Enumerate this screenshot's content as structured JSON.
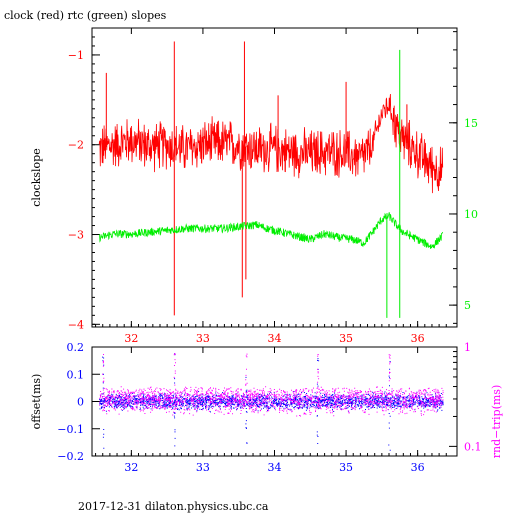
{
  "title": "clock (red) rtc (green) slopes",
  "footer": "2017-12-31 dilaton.physics.ubc.ca",
  "colors": {
    "axis": "#000000",
    "clock": "#ff0000",
    "rtc": "#00ee00",
    "offset": "#0000ff",
    "rndtrip": "#ff00ff"
  },
  "chart_data": [
    {
      "type": "line",
      "ylabel": "clockslope",
      "y2label": "",
      "xlim": [
        31.45,
        36.55
      ],
      "ylim": [
        -4.03,
        -0.7
      ],
      "y2lim": [
        3.8,
        20.2
      ],
      "xticks": [
        32,
        33,
        34,
        35,
        36
      ],
      "xtick_labels": [
        "32",
        "33",
        "34",
        "35",
        "36"
      ],
      "yticks": [
        -1,
        -2,
        -3,
        -4
      ],
      "ytick_labels": [
        "−1",
        "−2",
        "−3",
        "−4"
      ],
      "y2ticks": [
        5,
        10,
        15
      ],
      "y2tick_labels": [
        "5",
        "10",
        "15"
      ],
      "series": [
        {
          "name": "clock",
          "axis": "left",
          "x": [
            31.55,
            31.75,
            32.0,
            32.25,
            32.5,
            32.75,
            33.0,
            33.25,
            33.5,
            33.75,
            34.0,
            34.25,
            34.5,
            34.75,
            35.0,
            35.2,
            35.35,
            35.5,
            35.6,
            35.75,
            36.0,
            36.2,
            36.35
          ],
          "values": [
            -2.05,
            -2.0,
            -1.95,
            -2.02,
            -2.0,
            -2.05,
            -2.0,
            -1.98,
            -2.0,
            -2.05,
            -2.05,
            -2.08,
            -2.1,
            -2.08,
            -2.1,
            -2.15,
            -2.05,
            -1.65,
            -1.55,
            -1.9,
            -2.1,
            -2.25,
            -2.3
          ],
          "spikes": [
            {
              "x": 32.6,
              "value": -3.9
            },
            {
              "x": 32.6,
              "value": -0.85
            },
            {
              "x": 33.55,
              "value": -3.7
            },
            {
              "x": 33.58,
              "value": -0.85
            },
            {
              "x": 33.6,
              "value": -3.5
            },
            {
              "x": 31.65,
              "value": -1.2
            },
            {
              "x": 34.05,
              "value": -1.45
            },
            {
              "x": 35.0,
              "value": -1.3
            },
            {
              "x": 35.85,
              "value": -1.55
            }
          ]
        },
        {
          "name": "rtc",
          "axis": "right",
          "x": [
            31.55,
            31.75,
            32.0,
            32.25,
            32.5,
            32.75,
            33.0,
            33.25,
            33.5,
            33.75,
            33.9,
            34.1,
            34.3,
            34.5,
            34.7,
            34.9,
            35.1,
            35.25,
            35.35,
            35.5,
            35.6,
            35.7,
            35.8,
            36.0,
            36.2,
            36.35
          ],
          "values": [
            8.7,
            8.9,
            8.9,
            9.0,
            9.1,
            9.2,
            9.2,
            9.2,
            9.3,
            9.4,
            9.2,
            9.0,
            8.8,
            8.6,
            8.9,
            8.7,
            8.6,
            8.4,
            8.9,
            9.7,
            9.9,
            9.4,
            9.0,
            8.6,
            8.2,
            8.8
          ],
          "spikes": [
            {
              "x": 35.57,
              "value": 4.3
            },
            {
              "x": 35.75,
              "value": 4.3
            },
            {
              "x": 35.75,
              "value": 19.0
            }
          ]
        }
      ]
    },
    {
      "type": "scatter",
      "ylabel": "offset(ms)",
      "y2label": "rnd−trip(ms)",
      "xlim": [
        31.45,
        36.55
      ],
      "ylim": [
        -0.2,
        0.2
      ],
      "y2scale": "log",
      "y2lim": [
        0.08,
        1.0
      ],
      "xticks": [
        32,
        33,
        34,
        35,
        36
      ],
      "xtick_labels": [
        "32",
        "33",
        "34",
        "35",
        "36"
      ],
      "yticks": [
        0.2,
        0.1,
        0,
        -0.1,
        -0.2
      ],
      "ytick_labels": [
        "0.2",
        "0.1",
        "0",
        "−0.1",
        "−0.2"
      ],
      "y2ticks": [
        1,
        0.1
      ],
      "y2tick_labels": [
        "1",
        "0.1"
      ],
      "series": [
        {
          "name": "offset",
          "axis": "left",
          "x_range": [
            31.55,
            36.35
          ],
          "center": 0.0,
          "spread": 0.04,
          "outlier_x": [
            31.6,
            32.6,
            33.6,
            34.6,
            35.6
          ]
        },
        {
          "name": "rnd-trip",
          "axis": "right",
          "x_range": [
            31.55,
            36.35
          ],
          "center": 0.3,
          "spread_low": 0.2,
          "spread_high": 0.4,
          "outlier_x": [
            31.6,
            32.6,
            33.6,
            34.6,
            35.6
          ]
        }
      ]
    }
  ]
}
